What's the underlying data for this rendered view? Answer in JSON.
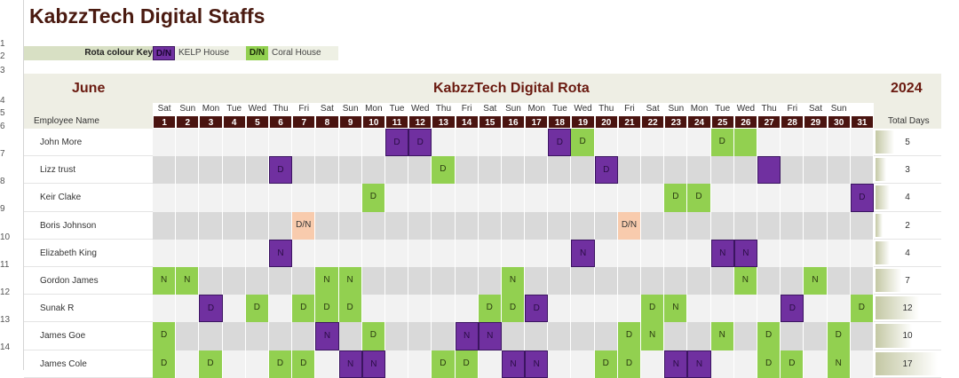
{
  "title": "KabzzTech Digital Staffs",
  "row_numbers": [
    "1",
    "2",
    "3",
    "4",
    "5",
    "6",
    "7",
    "8",
    "9",
    "10",
    "11",
    "12",
    "13",
    "14"
  ],
  "key": {
    "label": "Rota colour Key",
    "kelp_code": "D/N",
    "kelp_label": "KELP House",
    "coral_code": "D/N",
    "coral_label": "Coral House"
  },
  "colors": {
    "kelp": "#7030a0",
    "coral": "#92d050",
    "both": "#f8cbad",
    "header": "#4a1410"
  },
  "header": {
    "month": "June",
    "rota_title": "KabzzTech Digital Rota",
    "year": "2024",
    "employee_col": "Employee Name",
    "total_col": "Total Days"
  },
  "day_names": [
    "Sat",
    "Sun",
    "Mon",
    "Tue",
    "Wed",
    "Thu",
    "Fri",
    "Sat",
    "Sun",
    "Mon",
    "Tue",
    "Wed",
    "Thu",
    "Fri",
    "Sat",
    "Sun",
    "Mon",
    "Tue",
    "Wed",
    "Thu",
    "Fri",
    "Sat",
    "Sun",
    "Mon",
    "Tue",
    "Wed",
    "Thu",
    "Fri",
    "Sat",
    "Sun",
    ""
  ],
  "day_numbers": [
    "1",
    "2",
    "3",
    "4",
    "5",
    "6",
    "7",
    "8",
    "9",
    "10",
    "11",
    "12",
    "13",
    "14",
    "15",
    "16",
    "17",
    "18",
    "19",
    "20",
    "21",
    "22",
    "23",
    "24",
    "25",
    "26",
    "27",
    "28",
    "29",
    "30",
    "31"
  ],
  "max_total": 17,
  "employees": [
    {
      "name": "John More",
      "total": "5",
      "shifts": [
        [
          11,
          "kelp",
          "D"
        ],
        [
          12,
          "kelp",
          "D"
        ],
        [
          18,
          "kelp",
          "D"
        ],
        [
          19,
          "coral",
          "D"
        ],
        [
          25,
          "coral",
          "D"
        ],
        [
          26,
          "coral",
          ""
        ]
      ]
    },
    {
      "name": "Lizz trust",
      "total": "3",
      "shifts": [
        [
          6,
          "kelp",
          "D"
        ],
        [
          13,
          "coral",
          "D"
        ],
        [
          20,
          "kelp",
          "D"
        ],
        [
          27,
          "kelp",
          ""
        ]
      ]
    },
    {
      "name": "Keir Clake",
      "total": "4",
      "shifts": [
        [
          10,
          "coral",
          "D"
        ],
        [
          23,
          "coral",
          "D"
        ],
        [
          24,
          "coral",
          "D"
        ],
        [
          31,
          "kelp",
          "D"
        ]
      ]
    },
    {
      "name": "Boris Johnson",
      "total": "2",
      "shifts": [
        [
          7,
          "peach",
          "D/N"
        ],
        [
          21,
          "peach",
          "D/N"
        ]
      ]
    },
    {
      "name": "Elizabeth King",
      "total": "4",
      "shifts": [
        [
          6,
          "kelp",
          "N"
        ],
        [
          19,
          "kelp",
          "N"
        ],
        [
          25,
          "kelp",
          "N"
        ],
        [
          26,
          "kelp",
          "N"
        ]
      ]
    },
    {
      "name": "Gordon James",
      "total": "7",
      "shifts": [
        [
          1,
          "coral",
          "N"
        ],
        [
          2,
          "coral",
          "N"
        ],
        [
          8,
          "coral",
          "N"
        ],
        [
          9,
          "coral",
          "N"
        ],
        [
          16,
          "coral",
          "N"
        ],
        [
          26,
          "coral",
          "N"
        ],
        [
          29,
          "coral",
          "N"
        ]
      ]
    },
    {
      "name": "Sunak R",
      "total": "12",
      "shifts": [
        [
          3,
          "kelp",
          "D"
        ],
        [
          5,
          "coral",
          "D"
        ],
        [
          7,
          "coral",
          "D"
        ],
        [
          8,
          "coral",
          "D"
        ],
        [
          9,
          "coral",
          "D"
        ],
        [
          15,
          "coral",
          "D"
        ],
        [
          16,
          "coral",
          "D"
        ],
        [
          17,
          "kelp",
          "D"
        ],
        [
          22,
          "coral",
          "D"
        ],
        [
          23,
          "coral",
          "N"
        ],
        [
          28,
          "kelp",
          "D"
        ],
        [
          31,
          "coral",
          "D"
        ]
      ]
    },
    {
      "name": "James  Goe",
      "total": "10",
      "shifts": [
        [
          1,
          "coral",
          "D"
        ],
        [
          8,
          "kelp",
          "N"
        ],
        [
          10,
          "coral",
          "D"
        ],
        [
          14,
          "kelp",
          "N"
        ],
        [
          15,
          "kelp",
          "N"
        ],
        [
          21,
          "coral",
          "D"
        ],
        [
          22,
          "coral",
          "N"
        ],
        [
          25,
          "coral",
          "N"
        ],
        [
          27,
          "coral",
          "D"
        ],
        [
          30,
          "coral",
          "D"
        ]
      ]
    },
    {
      "name": "James Cole",
      "total": "17",
      "shifts": [
        [
          1,
          "coral",
          "D"
        ],
        [
          3,
          "coral",
          "D"
        ],
        [
          6,
          "coral",
          "D"
        ],
        [
          7,
          "coral",
          "D"
        ],
        [
          9,
          "kelp",
          "N"
        ],
        [
          10,
          "kelp",
          "N"
        ],
        [
          13,
          "coral",
          "D"
        ],
        [
          14,
          "coral",
          "D"
        ],
        [
          16,
          "kelp",
          "N"
        ],
        [
          17,
          "kelp",
          "N"
        ],
        [
          20,
          "coral",
          "D"
        ],
        [
          21,
          "coral",
          "D"
        ],
        [
          23,
          "kelp",
          "N"
        ],
        [
          24,
          "kelp",
          "N"
        ],
        [
          27,
          "coral",
          "D"
        ],
        [
          28,
          "coral",
          "D"
        ],
        [
          30,
          "coral",
          "N"
        ]
      ]
    }
  ]
}
